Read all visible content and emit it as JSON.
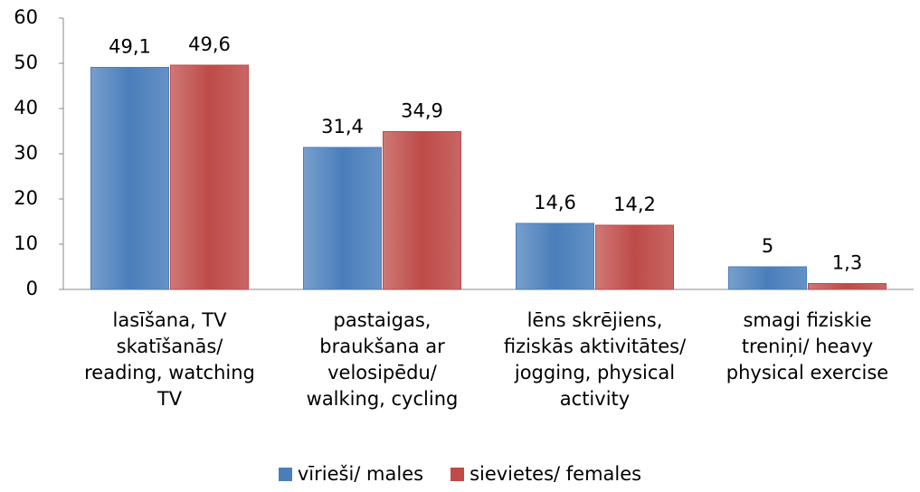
{
  "chart_data": {
    "type": "bar",
    "categories": [
      "lasīšana, TV\nskatīšanās/\nreading, watching\nTV",
      "pastaigas,\nbraukšana ar\nvelosipēdu/\nwalking, cycling",
      "lēns skrējiens,\nfiziskās aktivitātes/\njogging, physical\nactivity",
      "smagi fiziskie\ntreniņi/ heavy\nphysical exercise"
    ],
    "series": [
      {
        "name": "vīrieši/ males",
        "color": "#4a7ebb",
        "values": [
          49.1,
          31.4,
          14.6,
          5
        ],
        "value_labels": [
          "49,1",
          "31,4",
          "14,6",
          "5"
        ]
      },
      {
        "name": "sievietes/ females",
        "color": "#be4b48",
        "values": [
          49.6,
          34.9,
          14.2,
          1.3
        ],
        "value_labels": [
          "49,6",
          "34,9",
          "14,2",
          "1,3"
        ]
      }
    ],
    "ylim": [
      0,
      60
    ],
    "yticks": [
      0,
      10,
      20,
      30,
      40,
      50,
      60
    ],
    "grid": false,
    "legend": "bottom"
  }
}
